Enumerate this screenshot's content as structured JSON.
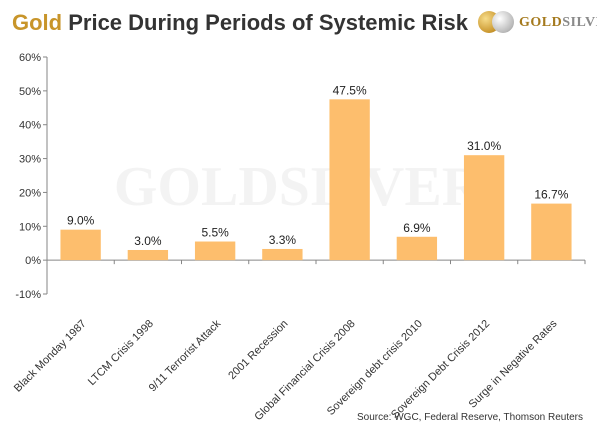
{
  "title": {
    "highlight": "Gold",
    "rest": " Price During Periods of Systemic Risk"
  },
  "logo": {
    "brand_gold": "GOLD",
    "brand_silver": "SILVER",
    "watermark": "GOLDSILVER"
  },
  "source": "Source: WGC, Federal Reserve, Thomson Reuters",
  "colors": {
    "bar": "#fdbe6d",
    "accent": "#c8952a"
  },
  "chart_data": {
    "type": "bar",
    "title": "Gold Price During Periods of Systemic Risk",
    "xlabel": "",
    "ylabel": "",
    "categories": [
      "Black Monday 1987",
      "LTCM Crisis 1998",
      "9/11 Terrorist Attack",
      "2001 Recession",
      "Global Financial Crisis 2008",
      "Sovereign debt crisis 2010",
      "Sovereign Debt Crisis 2012",
      "Surge in Negative Rates"
    ],
    "values": [
      9.0,
      3.0,
      5.5,
      3.3,
      47.5,
      6.9,
      31.0,
      16.7
    ],
    "data_labels": [
      "9.0%",
      "3.0%",
      "5.5%",
      "3.3%",
      "47.5%",
      "6.9%",
      "31.0%",
      "16.7%"
    ],
    "yticks": [
      -10,
      0,
      10,
      20,
      30,
      40,
      50,
      60
    ],
    "ytick_labels": [
      "-10%",
      "0%",
      "10%",
      "20%",
      "30%",
      "40%",
      "50%",
      "60%"
    ],
    "ylim": [
      -10,
      60
    ],
    "grid": false,
    "legend": "none"
  }
}
